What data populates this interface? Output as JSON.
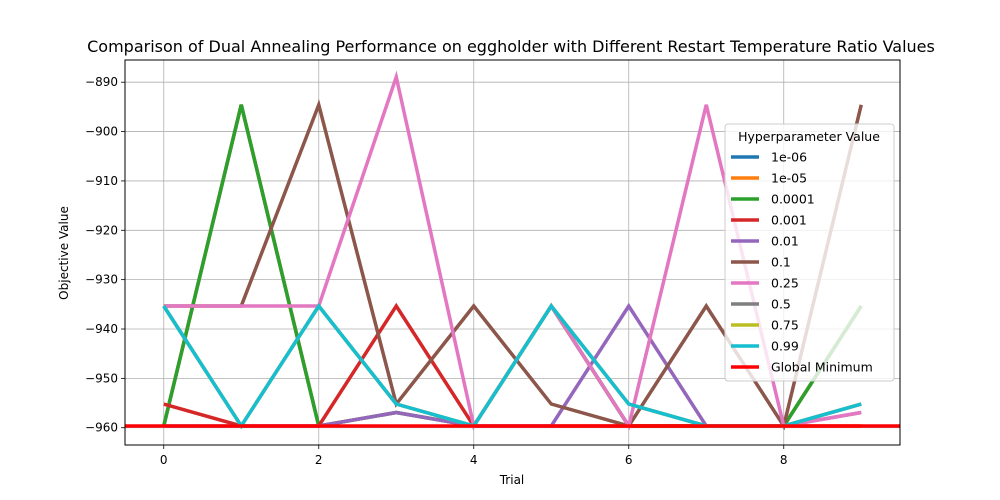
{
  "chart_data": {
    "type": "line",
    "title": "Comparison of Dual Annealing Performance on eggholder with Different Restart Temperature Ratio Values",
    "xlabel": "Trial",
    "ylabel": "Objective Value",
    "xlim": [
      -0.5,
      9.5
    ],
    "ylim": [
      -963.5,
      -885.5
    ],
    "xticks": [
      0,
      2,
      4,
      6,
      8
    ],
    "yticks": [
      -960,
      -950,
      -940,
      -930,
      -920,
      -910,
      -900,
      -890
    ],
    "grid": true,
    "legend_title": "Hyperparameter Value",
    "legend_position": "right",
    "x": [
      0,
      1,
      2,
      3,
      4,
      5,
      6,
      7,
      8,
      9
    ],
    "series": [
      {
        "name": "1e-06",
        "color": "#1f77b4",
        "values": [
          -959.64,
          -894.58,
          -959.64,
          -956.92,
          -959.64,
          -935.34,
          -959.64,
          -959.64,
          -959.64,
          -935.34
        ]
      },
      {
        "name": "1e-05",
        "color": "#ff7f0e",
        "values": [
          -959.64,
          -894.58,
          -959.64,
          -956.92,
          -959.64,
          -935.34,
          -959.64,
          -959.64,
          -959.64,
          -935.34
        ]
      },
      {
        "name": "0.0001",
        "color": "#2ca02c",
        "values": [
          -959.64,
          -894.58,
          -959.64,
          -956.92,
          -959.64,
          -935.34,
          -959.64,
          -959.64,
          -959.64,
          -935.34
        ]
      },
      {
        "name": "0.001",
        "color": "#d62728",
        "values": [
          -955.2,
          -959.64,
          -959.64,
          -935.34,
          -959.64,
          -959.64,
          -959.64,
          -959.64,
          -959.64,
          -959.64
        ]
      },
      {
        "name": "0.01",
        "color": "#9467bd",
        "values": [
          -959.64,
          -959.64,
          -959.64,
          -956.92,
          -959.64,
          -959.64,
          -935.34,
          -959.64,
          -959.64,
          -956.92
        ]
      },
      {
        "name": "0.1",
        "color": "#8c564b",
        "values": [
          -935.34,
          -935.34,
          -894.58,
          -955.2,
          -935.34,
          -955.2,
          -959.64,
          -935.34,
          -959.64,
          -894.58
        ]
      },
      {
        "name": "0.25",
        "color": "#e377c2",
        "values": [
          -935.34,
          -935.34,
          -935.34,
          -888.95,
          -959.64,
          -935.34,
          -959.64,
          -894.58,
          -959.64,
          -956.92
        ]
      },
      {
        "name": "0.5",
        "color": "#7f7f7f",
        "values": [
          -935.34,
          -959.64,
          -935.34,
          -955.2,
          -959.64,
          -935.34,
          -955.2,
          -959.64,
          -959.64,
          -955.2
        ]
      },
      {
        "name": "0.75",
        "color": "#bcbd22",
        "values": [
          -935.34,
          -959.64,
          -935.34,
          -955.2,
          -959.64,
          -935.34,
          -955.2,
          -959.64,
          -959.64,
          -955.2
        ]
      },
      {
        "name": "0.99",
        "color": "#17becf",
        "values": [
          -935.34,
          -959.64,
          -935.34,
          -955.2,
          -959.64,
          -935.34,
          -955.2,
          -959.64,
          -959.64,
          -955.2
        ]
      }
    ],
    "reference_line": {
      "name": "Global Minimum",
      "color": "#ff0000",
      "value": -959.6407
    }
  }
}
